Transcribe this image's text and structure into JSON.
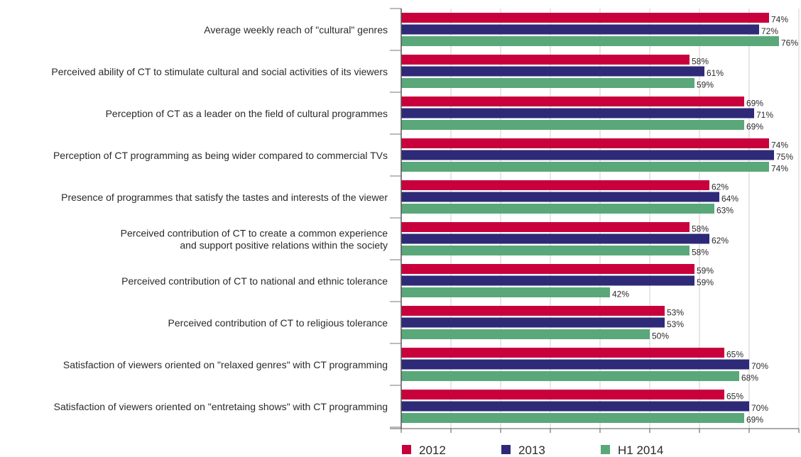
{
  "chart_data": {
    "type": "bar",
    "orientation": "horizontal",
    "categories": [
      [
        "Average weekly reach of \"cultural\" genres"
      ],
      [
        "Perceived ability of CT to stimulate cultural and social activities of its viewers"
      ],
      [
        "Perception of CT as a leader on the field of cultural programmes"
      ],
      [
        "Perception of CT programming as being wider compared to commercial TVs"
      ],
      [
        "Presence of programmes that satisfy the tastes and interests of the viewer"
      ],
      [
        "Perceived contribution of CT to create a common experience",
        "and support positive relations within the society"
      ],
      [
        "Perceived contribution of CT to national and ethnic tolerance"
      ],
      [
        "Perceived contribution of CT to religious tolerance"
      ],
      [
        "Satisfaction of viewers oriented on \"relaxed genres\" with CT programming"
      ],
      [
        "Satisfaction of viewers oriented on \"entretaing shows\" with CT programming"
      ]
    ],
    "series": [
      {
        "name": "2012",
        "color": "#c8003c",
        "values": [
          74,
          58,
          69,
          74,
          62,
          58,
          59,
          53,
          65,
          65
        ]
      },
      {
        "name": "2013",
        "color": "#2e2a78",
        "values": [
          72,
          61,
          71,
          75,
          64,
          62,
          59,
          53,
          70,
          70
        ]
      },
      {
        "name": "H1 2014",
        "color": "#5aa87a",
        "values": [
          76,
          59,
          69,
          74,
          63,
          58,
          42,
          50,
          68,
          69
        ]
      }
    ],
    "value_suffix": "%",
    "xlim": [
      0,
      80
    ],
    "grid": true,
    "legend_position": "bottom"
  }
}
